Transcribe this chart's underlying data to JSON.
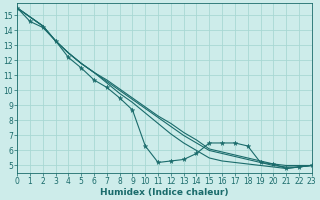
{
  "xlabel": "Humidex (Indice chaleur)",
  "xlim": [
    0,
    23
  ],
  "ylim": [
    4.5,
    15.8
  ],
  "background_color": "#cdecea",
  "grid_color": "#a8d8d4",
  "line_color": "#1a6b6b",
  "lines": [
    {
      "x": [
        0,
        1,
        2,
        3,
        4,
        5,
        6,
        7,
        8,
        9,
        10,
        11,
        12,
        13,
        14,
        15,
        16,
        17,
        18,
        19,
        20,
        21,
        22,
        23
      ],
      "y": [
        15.5,
        14.6,
        14.2,
        13.3,
        12.2,
        11.5,
        10.7,
        10.2,
        9.5,
        8.7,
        6.3,
        5.2,
        5.3,
        5.4,
        5.8,
        6.5,
        6.5,
        6.5,
        6.3,
        5.2,
        5.1,
        4.8,
        4.9,
        5.0
      ],
      "with_markers": true
    },
    {
      "x": [
        0,
        2,
        3,
        4,
        5,
        6,
        7,
        8,
        9,
        10,
        11,
        12,
        13,
        14,
        15,
        16,
        17,
        18,
        19,
        20,
        21,
        22,
        23
      ],
      "y": [
        15.5,
        14.3,
        13.3,
        12.5,
        11.8,
        11.2,
        10.7,
        10.1,
        9.5,
        8.9,
        8.3,
        7.8,
        7.2,
        6.7,
        6.1,
        5.9,
        5.7,
        5.5,
        5.3,
        5.1,
        5.0,
        5.0,
        5.0
      ],
      "with_markers": false
    },
    {
      "x": [
        0,
        2,
        3,
        4,
        5,
        6,
        7,
        8,
        9,
        10,
        11,
        12,
        13,
        14,
        15,
        16,
        17,
        18,
        19,
        20,
        21,
        22,
        23
      ],
      "y": [
        15.5,
        14.3,
        13.3,
        12.5,
        11.8,
        11.2,
        10.6,
        10.0,
        9.4,
        8.8,
        8.2,
        7.6,
        7.0,
        6.5,
        6.0,
        5.8,
        5.6,
        5.4,
        5.2,
        5.0,
        4.9,
        4.9,
        5.0
      ],
      "with_markers": false
    },
    {
      "x": [
        0,
        2,
        3,
        4,
        5,
        6,
        7,
        8,
        9,
        10,
        11,
        12,
        13,
        14,
        15,
        16,
        17,
        18,
        19,
        20,
        21,
        22,
        23
      ],
      "y": [
        15.5,
        14.3,
        13.3,
        12.5,
        11.8,
        11.2,
        10.5,
        9.8,
        9.2,
        8.5,
        7.8,
        7.1,
        6.5,
        6.0,
        5.5,
        5.3,
        5.2,
        5.1,
        5.0,
        4.9,
        4.8,
        4.9,
        5.0
      ],
      "with_markers": false
    }
  ],
  "xticks": [
    0,
    1,
    2,
    3,
    4,
    5,
    6,
    7,
    8,
    9,
    10,
    11,
    12,
    13,
    14,
    15,
    16,
    17,
    18,
    19,
    20,
    21,
    22,
    23
  ],
  "yticks": [
    5,
    6,
    7,
    8,
    9,
    10,
    11,
    12,
    13,
    14,
    15
  ],
  "tick_fontsize": 5.5,
  "label_fontsize": 6.5
}
